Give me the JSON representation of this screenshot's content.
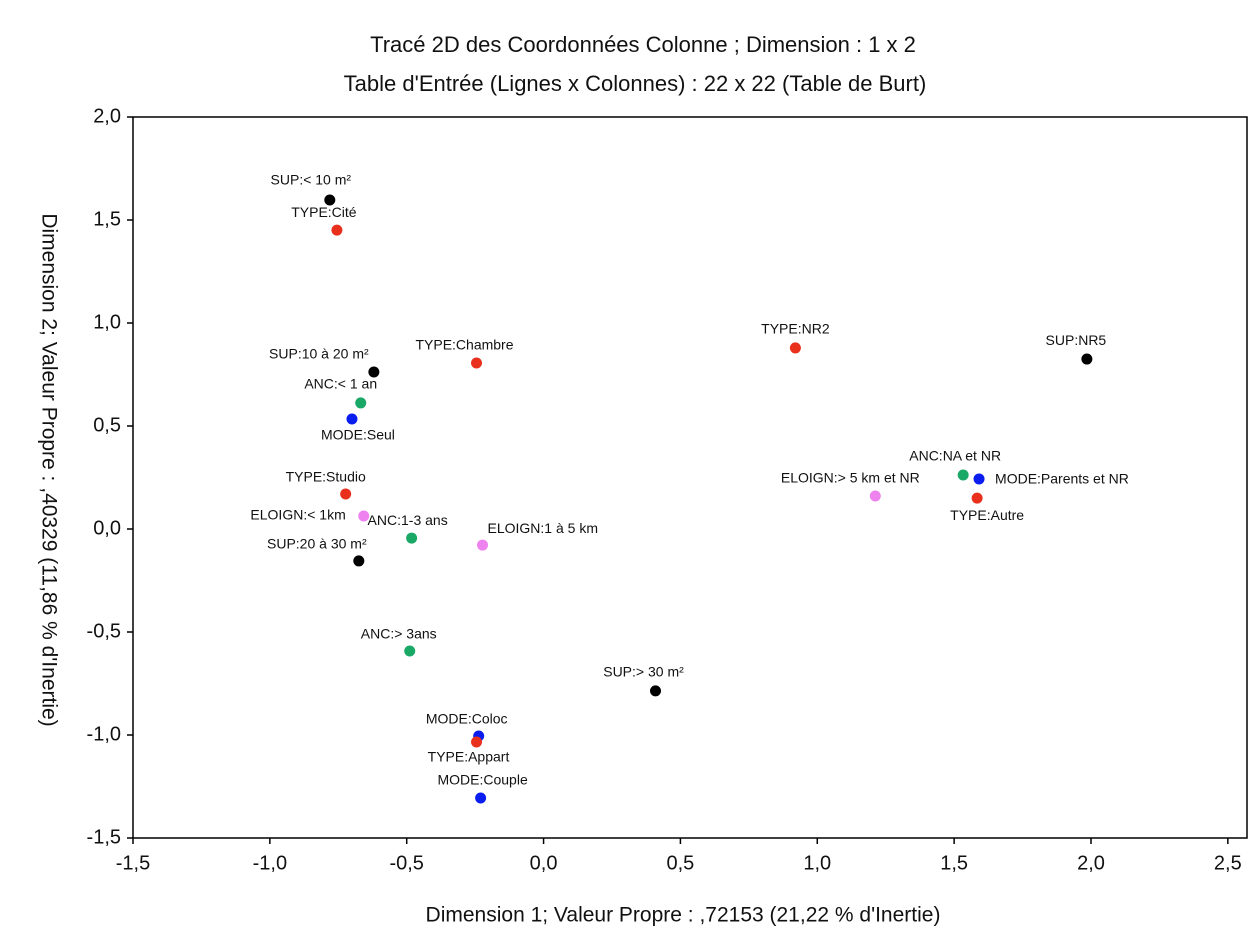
{
  "chart_data": {
    "type": "scatter",
    "title": "Tracé 2D des Coordonnées Colonne ; Dimension :  1 x 2",
    "subtitle": "Table d'Entrée (Lignes x Colonnes) : 22 x 22 (Table de Burt)",
    "x_label": "Dimension 1; Valeur Propre : ,72153 (21,22  % d'Inertie)",
    "y_label": "Dimension 2; Valeur Propre : ,40329 (11,86  % d'Inertie)",
    "xlim": [
      -1.5,
      2.57
    ],
    "ylim": [
      -1.5,
      2.0
    ],
    "xticks": [
      {
        "value": -1.5,
        "label": "-1,5"
      },
      {
        "value": -1.0,
        "label": "-1,0"
      },
      {
        "value": -0.5,
        "label": "-0,5"
      },
      {
        "value": 0,
        "label": "0,0"
      },
      {
        "value": 0.5,
        "label": "0,5"
      },
      {
        "value": 1.0,
        "label": "1,0"
      },
      {
        "value": 1.5,
        "label": "1,5"
      },
      {
        "value": 2.0,
        "label": "2,0"
      },
      {
        "value": 2.5,
        "label": "2,5"
      }
    ],
    "yticks": [
      {
        "value": -1.5,
        "label": "-1,5"
      },
      {
        "value": -1.0,
        "label": "-1,0"
      },
      {
        "value": -0.5,
        "label": "-0,5"
      },
      {
        "value": 0,
        "label": "0,0"
      },
      {
        "value": 0.5,
        "label": "0,5"
      },
      {
        "value": 1.0,
        "label": "1,0"
      },
      {
        "value": 1.5,
        "label": "1,5"
      },
      {
        "value": 2.0,
        "label": "2,0"
      }
    ],
    "grid": false,
    "labels": [
      "SUP:< 10 m²",
      "TYPE:Cité",
      "SUP:10 à 20 m²",
      "TYPE:Chambre",
      "ANC:< 1 an",
      "MODE:Seul",
      "TYPE:Studio",
      "ELOIGN:< 1km",
      "ANC:1-3 ans",
      "ELOIGN:1 à 5 km",
      "SUP:20 à 30 m²",
      "ANC:> 3ans",
      "SUP:> 30 m²",
      "MODE:Coloc",
      "TYPE:Appart",
      "MODE:Couple",
      "TYPE:NR2",
      "SUP:NR5",
      "ANC:NA et NR",
      "MODE:Parents et NR",
      "TYPE:Autre",
      "ELOIGN:> 5 km et NR"
    ],
    "x": [
      -0.781,
      -0.755,
      -0.62,
      -0.245,
      -0.668,
      -0.7,
      -0.723,
      -0.657,
      -0.482,
      -0.223,
      -0.675,
      -0.489,
      0.409,
      -0.237,
      -0.245,
      -0.23,
      0.92,
      1.985,
      1.533,
      1.591,
      1.584,
      1.212
    ],
    "y": [
      1.597,
      1.451,
      0.762,
      0.806,
      0.612,
      0.534,
      0.17,
      0.063,
      -0.044,
      -0.078,
      -0.155,
      -0.592,
      -0.786,
      -1.005,
      -1.034,
      -1.306,
      0.879,
      0.825,
      0.262,
      0.243,
      0.15,
      0.16
    ],
    "colors": [
      "#000000",
      "#e8301c",
      "#000000",
      "#e8301c",
      "#1aa867",
      "#0a1df0",
      "#e8301c",
      "#ee82ee",
      "#1aa867",
      "#ee82ee",
      "#000000",
      "#1aa867",
      "#000000",
      "#0a1df0",
      "#e8301c",
      "#0a1df0",
      "#e8301c",
      "#000000",
      "#1aa867",
      "#0a1df0",
      "#e8301c",
      "#ee82ee"
    ]
  }
}
